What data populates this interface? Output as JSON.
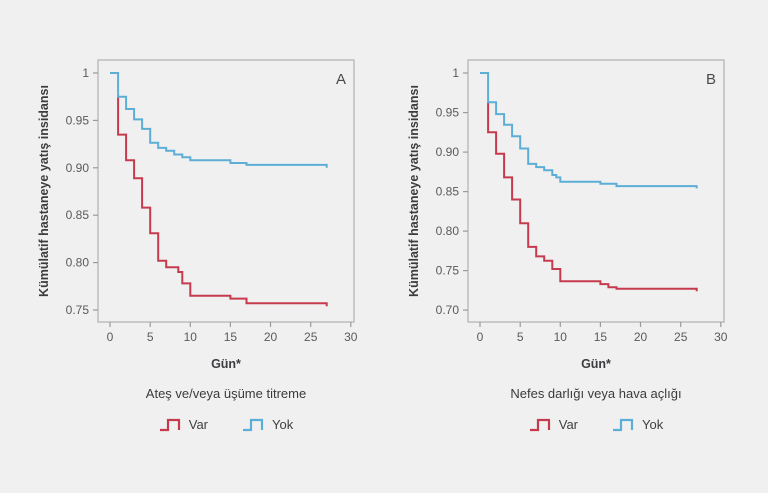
{
  "page": {
    "background": "#f0f0f1"
  },
  "colors": {
    "var_red": "#c63a4e",
    "yok_blue": "#5caed6",
    "plot_frame": "#b5b5b7",
    "tick_line": "#9a9a9a",
    "tick_text": "#595a5c",
    "axis_title_text": "#3b3c3e",
    "panel_letter_text": "#4a4a4a",
    "legend_text": "#3f4041"
  },
  "chart_data": [
    {
      "type": "line",
      "style": "step",
      "panel": "A",
      "title": "",
      "xlabel": "Gün*",
      "ylabel": "Kümülatif hastaneye yatış insidansı",
      "grid": false,
      "legend_position": "below",
      "legend_title": "Ateş ve/veya üşüme titreme",
      "xlim": [
        -1.5,
        30.4
      ],
      "ylim": [
        0.7373,
        1.0137
      ],
      "xticks": [
        0,
        5,
        10,
        15,
        20,
        25,
        30
      ],
      "yticks": [
        {
          "value": 1.0,
          "label": "1"
        },
        {
          "value": 0.95,
          "label": "0.95"
        },
        {
          "value": 0.9,
          "label": "0.90"
        },
        {
          "value": 0.85,
          "label": "0.85"
        },
        {
          "value": 0.8,
          "label": "0.80"
        },
        {
          "value": 0.75,
          "label": "0.75"
        }
      ],
      "series": [
        {
          "name": "Var",
          "color": "#c63a4e",
          "points": [
            [
              1,
              0.975
            ],
            [
              1,
              0.935
            ],
            [
              2,
              0.908
            ],
            [
              3,
              0.889
            ],
            [
              4,
              0.858
            ],
            [
              5,
              0.831
            ],
            [
              6,
              0.802
            ],
            [
              7,
              0.795
            ],
            [
              8.5,
              0.79
            ],
            [
              9,
              0.778
            ],
            [
              10,
              0.765
            ],
            [
              15,
              0.762
            ],
            [
              17,
              0.757
            ],
            [
              27,
              0.757
            ],
            [
              27,
              0.754
            ]
          ]
        },
        {
          "name": "Yok",
          "color": "#5caed6",
          "points": [
            [
              0,
              1
            ],
            [
              1,
              1
            ],
            [
              1,
              0.975
            ],
            [
              2,
              0.962
            ],
            [
              3,
              0.951
            ],
            [
              4,
              0.941
            ],
            [
              5,
              0.9265
            ],
            [
              6,
              0.921
            ],
            [
              7,
              0.918
            ],
            [
              8,
              0.914
            ],
            [
              9,
              0.911
            ],
            [
              10,
              0.908
            ],
            [
              15,
              0.905
            ],
            [
              17,
              0.903
            ],
            [
              27,
              0.903
            ],
            [
              27,
              0.9
            ]
          ]
        }
      ]
    },
    {
      "type": "line",
      "style": "step",
      "panel": "B",
      "title": "",
      "xlabel": "Gün*",
      "ylabel": "Kümülatif hastaneye yatış insidansı",
      "grid": false,
      "legend_position": "below",
      "legend_title": "Nefes darlığı veya hava açlığı",
      "xlim": [
        -1.5,
        30.4
      ],
      "ylim": [
        0.685,
        1.0165
      ],
      "xticks": [
        0,
        5,
        10,
        15,
        20,
        25,
        30
      ],
      "yticks": [
        {
          "value": 1.0,
          "label": "1"
        },
        {
          "value": 0.95,
          "label": "0.95"
        },
        {
          "value": 0.9,
          "label": "0.90"
        },
        {
          "value": 0.85,
          "label": "0.85"
        },
        {
          "value": 0.8,
          "label": "0.80"
        },
        {
          "value": 0.75,
          "label": "0.75"
        },
        {
          "value": 0.7,
          "label": "0.70"
        }
      ],
      "series": [
        {
          "name": "Var",
          "color": "#c63a4e",
          "points": [
            [
              1,
              0.963
            ],
            [
              1,
              0.925
            ],
            [
              2,
              0.898
            ],
            [
              3,
              0.868
            ],
            [
              4,
              0.84
            ],
            [
              5,
              0.81
            ],
            [
              6,
              0.78
            ],
            [
              7,
              0.768
            ],
            [
              8,
              0.7625
            ],
            [
              9,
              0.752
            ],
            [
              10,
              0.7365
            ],
            [
              15,
              0.733
            ],
            [
              16,
              0.729
            ],
            [
              17,
              0.727
            ],
            [
              27,
              0.727
            ],
            [
              27,
              0.724
            ]
          ]
        },
        {
          "name": "Yok",
          "color": "#5caed6",
          "points": [
            [
              0,
              1
            ],
            [
              1,
              1
            ],
            [
              1,
              0.963
            ],
            [
              2,
              0.948
            ],
            [
              3,
              0.9345
            ],
            [
              4,
              0.92
            ],
            [
              5,
              0.9045
            ],
            [
              6,
              0.885
            ],
            [
              7,
              0.881
            ],
            [
              8,
              0.877
            ],
            [
              9,
              0.871
            ],
            [
              9.5,
              0.868
            ],
            [
              10,
              0.8625
            ],
            [
              15,
              0.86
            ],
            [
              17,
              0.857
            ],
            [
              27,
              0.857
            ],
            [
              27,
              0.854
            ]
          ]
        }
      ]
    }
  ]
}
